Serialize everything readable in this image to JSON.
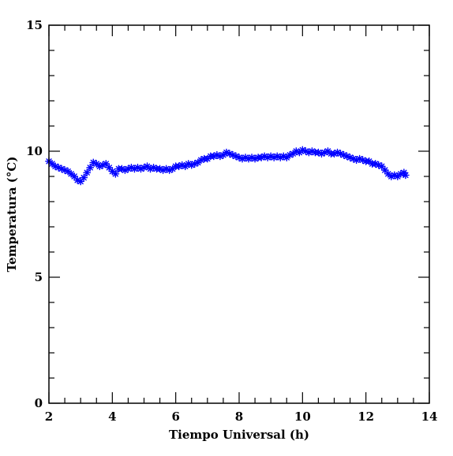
{
  "chart_data": {
    "type": "scatter",
    "title": "",
    "xlabel": "Tiempo Universal (h)",
    "ylabel": "Temperatura (°C)",
    "xlim": [
      2,
      14
    ],
    "ylim": [
      0,
      15
    ],
    "x_ticks": [
      "2",
      "4",
      "6",
      "8",
      "10",
      "12",
      "14"
    ],
    "y_ticks": [
      "0",
      "5",
      "10",
      "15"
    ],
    "marker": "asterisk",
    "color": "#0000ff",
    "grid": false,
    "series": [
      {
        "points": [
          [
            2.0,
            9.6
          ],
          [
            2.1,
            9.5
          ],
          [
            2.2,
            9.4
          ],
          [
            2.3,
            9.35
          ],
          [
            2.4,
            9.3
          ],
          [
            2.5,
            9.25
          ],
          [
            2.6,
            9.2
          ],
          [
            2.7,
            9.1
          ],
          [
            2.8,
            9.0
          ],
          [
            2.9,
            8.85
          ],
          [
            3.0,
            8.8
          ],
          [
            3.1,
            8.95
          ],
          [
            3.2,
            9.15
          ],
          [
            3.3,
            9.35
          ],
          [
            3.4,
            9.55
          ],
          [
            3.5,
            9.5
          ],
          [
            3.6,
            9.4
          ],
          [
            3.7,
            9.45
          ],
          [
            3.8,
            9.5
          ],
          [
            3.9,
            9.35
          ],
          [
            4.0,
            9.2
          ],
          [
            4.1,
            9.1
          ],
          [
            4.2,
            9.3
          ],
          [
            4.3,
            9.3
          ],
          [
            4.4,
            9.25
          ],
          [
            4.5,
            9.3
          ],
          [
            4.6,
            9.35
          ],
          [
            4.7,
            9.3
          ],
          [
            4.8,
            9.35
          ],
          [
            4.9,
            9.3
          ],
          [
            5.0,
            9.35
          ],
          [
            5.1,
            9.4
          ],
          [
            5.2,
            9.3
          ],
          [
            5.3,
            9.35
          ],
          [
            5.4,
            9.3
          ],
          [
            5.5,
            9.3
          ],
          [
            5.6,
            9.25
          ],
          [
            5.7,
            9.3
          ],
          [
            5.8,
            9.25
          ],
          [
            5.9,
            9.3
          ],
          [
            6.0,
            9.4
          ],
          [
            6.1,
            9.4
          ],
          [
            6.2,
            9.45
          ],
          [
            6.3,
            9.4
          ],
          [
            6.4,
            9.5
          ],
          [
            6.5,
            9.45
          ],
          [
            6.6,
            9.5
          ],
          [
            6.7,
            9.55
          ],
          [
            6.8,
            9.65
          ],
          [
            6.9,
            9.7
          ],
          [
            7.0,
            9.7
          ],
          [
            7.1,
            9.8
          ],
          [
            7.2,
            9.8
          ],
          [
            7.3,
            9.85
          ],
          [
            7.4,
            9.8
          ],
          [
            7.5,
            9.85
          ],
          [
            7.6,
            9.95
          ],
          [
            7.7,
            9.9
          ],
          [
            7.8,
            9.85
          ],
          [
            7.9,
            9.8
          ],
          [
            8.0,
            9.75
          ],
          [
            8.1,
            9.7
          ],
          [
            8.2,
            9.75
          ],
          [
            8.3,
            9.7
          ],
          [
            8.4,
            9.75
          ],
          [
            8.5,
            9.7
          ],
          [
            8.6,
            9.75
          ],
          [
            8.7,
            9.75
          ],
          [
            8.8,
            9.8
          ],
          [
            8.9,
            9.75
          ],
          [
            9.0,
            9.8
          ],
          [
            9.1,
            9.75
          ],
          [
            9.2,
            9.8
          ],
          [
            9.3,
            9.75
          ],
          [
            9.4,
            9.8
          ],
          [
            9.5,
            9.75
          ],
          [
            9.6,
            9.85
          ],
          [
            9.7,
            9.9
          ],
          [
            9.8,
            10.0
          ],
          [
            9.9,
            9.95
          ],
          [
            10.0,
            10.05
          ],
          [
            10.1,
            10.0
          ],
          [
            10.2,
            9.95
          ],
          [
            10.3,
            10.0
          ],
          [
            10.4,
            9.95
          ],
          [
            10.5,
            9.95
          ],
          [
            10.6,
            9.9
          ],
          [
            10.7,
            9.95
          ],
          [
            10.8,
            10.0
          ],
          [
            10.9,
            9.9
          ],
          [
            11.0,
            9.9
          ],
          [
            11.1,
            9.95
          ],
          [
            11.2,
            9.9
          ],
          [
            11.3,
            9.85
          ],
          [
            11.4,
            9.8
          ],
          [
            11.5,
            9.75
          ],
          [
            11.6,
            9.7
          ],
          [
            11.7,
            9.65
          ],
          [
            11.8,
            9.7
          ],
          [
            11.9,
            9.65
          ],
          [
            12.0,
            9.6
          ],
          [
            12.1,
            9.6
          ],
          [
            12.2,
            9.5
          ],
          [
            12.3,
            9.5
          ],
          [
            12.4,
            9.45
          ],
          [
            12.5,
            9.4
          ],
          [
            12.6,
            9.25
          ],
          [
            12.7,
            9.1
          ],
          [
            12.8,
            9.0
          ],
          [
            12.9,
            9.05
          ],
          [
            13.0,
            9.0
          ],
          [
            13.1,
            9.1
          ],
          [
            13.2,
            9.15
          ],
          [
            13.25,
            9.05
          ]
        ]
      }
    ]
  }
}
